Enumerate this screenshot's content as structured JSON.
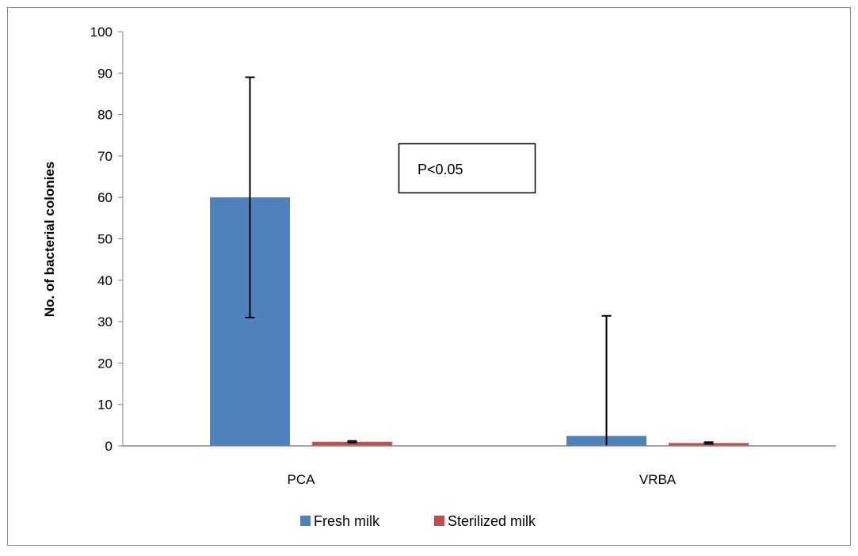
{
  "chart_data": {
    "type": "bar",
    "categories": [
      "PCA",
      "VRBA"
    ],
    "series": [
      {
        "name": "Fresh milk",
        "values": [
          60,
          2.4
        ],
        "errors": [
          29,
          29
        ],
        "color": "#4f81bd"
      },
      {
        "name": "Sterilized milk",
        "values": [
          1.0,
          0.7
        ],
        "errors": [
          0.2,
          0.2
        ],
        "color": "#c0504d"
      }
    ],
    "ylabel": "No. of bacterial colonies",
    "xlabel": "",
    "ylim": [
      0,
      100
    ],
    "yticks": [
      "0",
      "10",
      "20",
      "30",
      "40",
      "50",
      "60",
      "70",
      "80",
      "90",
      "100"
    ],
    "grid": false,
    "legend": "bottom",
    "annotation": "P<0.05"
  }
}
